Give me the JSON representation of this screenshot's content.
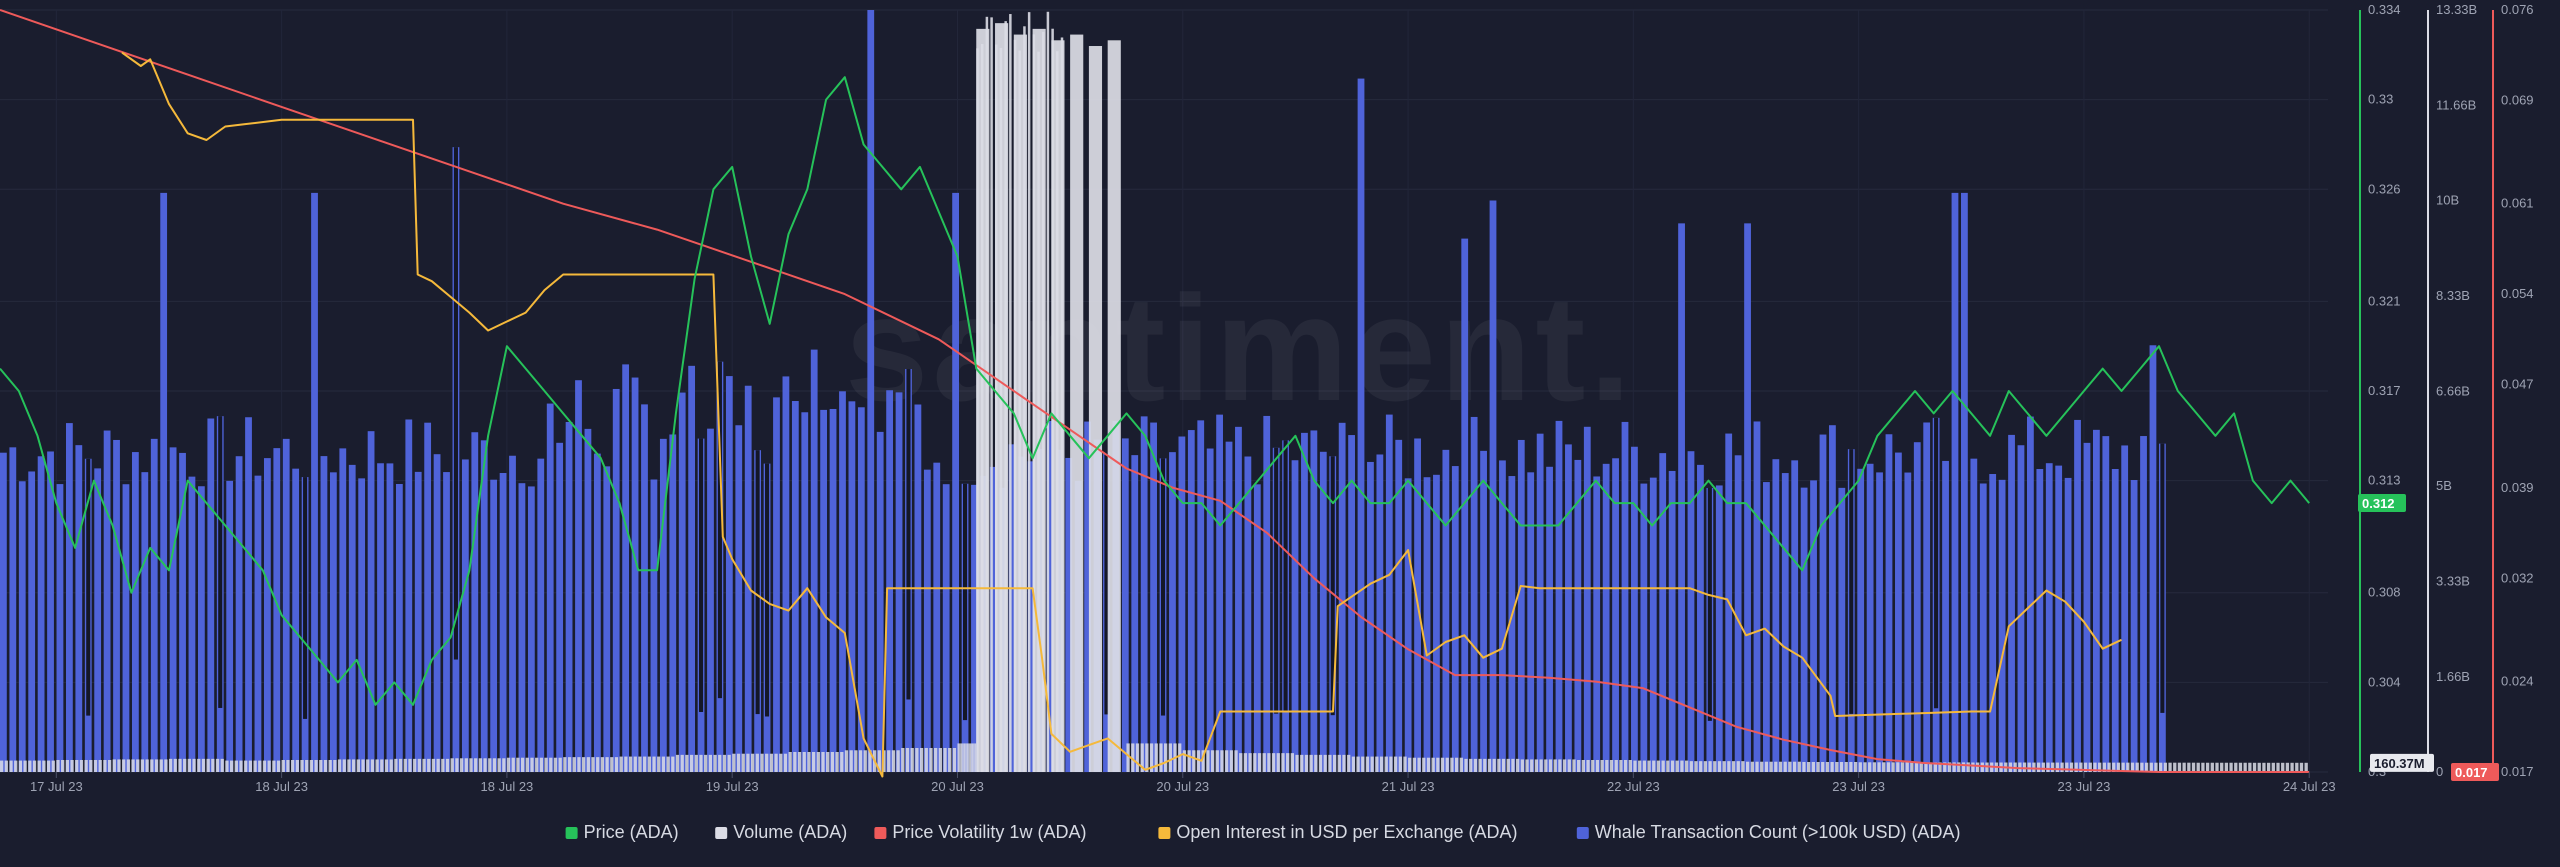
{
  "chart_data": {
    "type": "line",
    "watermark": "santiment.",
    "x_tick_labels": [
      "17 Jul 23",
      "18 Jul 23",
      "18 Jul 23",
      "19 Jul 23",
      "20 Jul 23",
      "20 Jul 23",
      "21 Jul 23",
      "22 Jul 23",
      "23 Jul 23",
      "23 Jul 23",
      "24 Jul 23"
    ],
    "x_tick_positions_hours": [
      6,
      30,
      54,
      78,
      102,
      126,
      150,
      174,
      198,
      222,
      246
    ],
    "x_range_hours": [
      0,
      248
    ],
    "axes": {
      "price": {
        "name": "Price (ADA)",
        "color": "#26c25a",
        "range": [
          0.3,
          0.334
        ],
        "tick_labels": [
          "0.334",
          "0.33",
          "0.326",
          "0.321",
          "0.317",
          "0.313",
          "0.308",
          "0.304",
          "0.3"
        ],
        "tick_values": [
          0.334,
          0.33,
          0.326,
          0.321,
          0.317,
          0.313,
          0.308,
          0.304,
          0.3
        ],
        "current_label": "0.312",
        "current_value": 0.312
      },
      "volume": {
        "name": "Volume (ADA)",
        "color": "#dcdde6",
        "range": [
          0,
          13330000000
        ],
        "tick_labels": [
          "13.33B",
          "11.66B",
          "10B",
          "8.33B",
          "6.66B",
          "5B",
          "3.33B",
          "1.66B",
          "0"
        ],
        "tick_values": [
          13330000000,
          11660000000,
          10000000000,
          8330000000,
          6660000000,
          5000000000,
          3330000000,
          1660000000,
          0
        ],
        "current_label": "160.37M",
        "current_value": 160370000
      },
      "volatility": {
        "name": "Price Volatility 1w (ADA)",
        "color": "#ee5a5a",
        "range": [
          0.017,
          0.076
        ],
        "tick_labels": [
          "0.076",
          "0.069",
          "0.061",
          "0.054",
          "0.047",
          "0.039",
          "0.032",
          "0.024",
          "0.017"
        ],
        "tick_values": [
          0.076,
          0.069,
          0.061,
          0.054,
          0.047,
          0.039,
          0.032,
          0.024,
          0.017
        ],
        "current_label": "0.017",
        "current_value": 0.017
      }
    },
    "series": [
      {
        "name": "Price (ADA)",
        "color": "#26c25a",
        "axis": "price",
        "x": [
          0,
          2,
          4,
          6,
          8,
          10,
          12,
          14,
          16,
          18,
          20,
          22,
          24,
          26,
          28,
          30,
          32,
          34,
          36,
          38,
          40,
          42,
          44,
          46,
          48,
          50,
          52,
          54,
          56,
          58,
          60,
          62,
          64,
          66,
          68,
          70,
          72,
          74,
          76,
          78,
          80,
          82,
          84,
          86,
          88,
          90,
          92,
          94,
          96,
          98,
          100,
          102,
          104,
          106,
          108,
          110,
          112,
          114,
          116,
          118,
          120,
          122,
          124,
          126,
          128,
          130,
          132,
          134,
          136,
          138,
          140,
          142,
          144,
          146,
          148,
          150,
          152,
          154,
          156,
          158,
          160,
          162,
          164,
          166,
          168,
          170,
          172,
          174,
          176,
          178,
          180,
          182,
          184,
          186,
          188,
          190,
          192,
          194,
          196,
          198,
          200,
          202,
          204,
          206,
          208,
          210,
          212,
          214,
          216,
          218,
          220,
          222,
          224,
          226,
          228,
          230,
          232,
          234,
          236,
          238,
          240,
          242,
          244,
          246
        ],
        "values": [
          0.318,
          0.317,
          0.315,
          0.312,
          0.31,
          0.313,
          0.311,
          0.308,
          0.31,
          0.309,
          0.313,
          0.312,
          0.311,
          0.31,
          0.309,
          0.307,
          0.306,
          0.305,
          0.304,
          0.305,
          0.303,
          0.304,
          0.303,
          0.305,
          0.306,
          0.309,
          0.315,
          0.319,
          0.318,
          0.317,
          0.316,
          0.315,
          0.314,
          0.312,
          0.309,
          0.309,
          0.316,
          0.322,
          0.326,
          0.327,
          0.323,
          0.32,
          0.324,
          0.326,
          0.33,
          0.331,
          0.328,
          0.327,
          0.326,
          0.327,
          0.325,
          0.323,
          0.318,
          0.317,
          0.316,
          0.314,
          0.316,
          0.315,
          0.314,
          0.315,
          0.316,
          0.315,
          0.313,
          0.312,
          0.312,
          0.311,
          0.312,
          0.313,
          0.314,
          0.315,
          0.313,
          0.312,
          0.313,
          0.312,
          0.312,
          0.313,
          0.312,
          0.311,
          0.312,
          0.313,
          0.312,
          0.311,
          0.311,
          0.311,
          0.312,
          0.313,
          0.312,
          0.312,
          0.311,
          0.312,
          0.312,
          0.313,
          0.312,
          0.312,
          0.311,
          0.31,
          0.309,
          0.311,
          0.312,
          0.313,
          0.315,
          0.316,
          0.317,
          0.316,
          0.317,
          0.316,
          0.315,
          0.317,
          0.316,
          0.315,
          0.316,
          0.317,
          0.318,
          0.317,
          0.318,
          0.319,
          0.317,
          0.316,
          0.315,
          0.316,
          0.313,
          0.312,
          0.313,
          0.312
        ]
      },
      {
        "name": "Volume (ADA)",
        "color": "#dcdde6",
        "axis": "volume",
        "x": [
          0,
          6,
          12,
          18,
          24,
          30,
          36,
          42,
          48,
          54,
          60,
          66,
          72,
          78,
          84,
          90,
          96,
          102,
          104,
          106,
          108,
          110,
          112,
          114,
          116,
          118,
          120,
          126,
          132,
          138,
          144,
          150,
          156,
          162,
          168,
          174,
          180,
          186,
          192,
          198,
          204,
          210,
          216,
          222,
          228,
          234,
          240,
          246
        ],
        "values": [
          200000000,
          210000000,
          220000000,
          230000000,
          200000000,
          210000000,
          220000000,
          230000000,
          240000000,
          250000000,
          260000000,
          270000000,
          300000000,
          320000000,
          350000000,
          380000000,
          420000000,
          500000000,
          13000000000,
          13100000000,
          12900000000,
          13000000000,
          12800000000,
          12900000000,
          12700000000,
          12800000000,
          500000000,
          380000000,
          330000000,
          300000000,
          270000000,
          250000000,
          230000000,
          220000000,
          210000000,
          200000000,
          190000000,
          180000000,
          175000000,
          170000000,
          168000000,
          166000000,
          165000000,
          164000000,
          163000000,
          162000000,
          161000000,
          160370000
        ]
      },
      {
        "name": "Price Volatility 1w (ADA)",
        "color": "#ee5a5a",
        "axis": "volatility",
        "x": [
          0,
          10,
          20,
          30,
          40,
          50,
          60,
          70,
          80,
          90,
          100,
          105,
          110,
          115,
          120,
          125,
          130,
          135,
          140,
          145,
          150,
          155,
          160,
          165,
          170,
          175,
          180,
          185,
          190,
          195,
          200,
          205,
          210,
          215,
          220,
          225,
          230,
          235,
          240,
          246
        ],
        "values": [
          0.076,
          0.0735,
          0.071,
          0.0685,
          0.066,
          0.0635,
          0.061,
          0.059,
          0.0565,
          0.054,
          0.0505,
          0.048,
          0.0455,
          0.043,
          0.0405,
          0.039,
          0.038,
          0.0355,
          0.032,
          0.029,
          0.0265,
          0.0245,
          0.0245,
          0.0243,
          0.024,
          0.0235,
          0.022,
          0.0205,
          0.0195,
          0.0187,
          0.018,
          0.0177,
          0.0175,
          0.0173,
          0.0172,
          0.0171,
          0.017,
          0.017,
          0.017,
          0.017
        ]
      },
      {
        "name": "Open Interest in USD per Exchange (ADA)",
        "color": "#f5b93b",
        "axis": "price",
        "x": [
          13,
          15,
          16,
          18,
          20,
          22,
          24,
          26,
          30,
          40,
          44,
          44.5,
          46,
          48,
          50,
          52,
          54,
          56,
          58,
          60,
          62,
          64,
          66,
          76,
          77,
          78,
          80,
          82,
          84,
          86,
          88,
          90,
          92,
          94,
          94.5,
          110,
          111,
          112,
          114,
          116,
          118,
          120,
          122,
          124,
          126,
          128,
          130,
          142,
          142.5,
          146,
          148,
          150,
          152,
          154,
          156,
          158,
          160,
          162,
          164,
          166,
          172,
          180,
          182,
          184,
          186,
          188,
          190,
          192,
          195,
          195.5,
          210,
          211,
          212,
          214,
          216,
          218,
          220,
          222,
          224,
          226
        ],
        "values": [
          0.3321,
          0.3315,
          0.3318,
          0.3298,
          0.3285,
          0.3282,
          0.3288,
          0.3289,
          0.3291,
          0.3291,
          0.3291,
          0.3222,
          0.3219,
          0.3212,
          0.3205,
          0.3197,
          0.3201,
          0.3205,
          0.3215,
          0.3222,
          0.3222,
          0.3222,
          0.3222,
          0.3222,
          0.3105,
          0.3095,
          0.3081,
          0.3075,
          0.3072,
          0.3082,
          0.3069,
          0.3062,
          0.3015,
          0.2998,
          0.3082,
          0.3082,
          0.3051,
          0.3017,
          0.3009,
          0.3012,
          0.3015,
          0.3008,
          0.3001,
          0.3004,
          0.3008,
          0.3005,
          0.3027,
          0.3027,
          0.3074,
          0.3084,
          0.3088,
          0.3099,
          0.3052,
          0.3058,
          0.3061,
          0.3051,
          0.3055,
          0.3083,
          0.3082,
          0.3082,
          0.3082,
          0.3082,
          0.3079,
          0.3077,
          0.3061,
          0.3064,
          0.3056,
          0.3051,
          0.3034,
          0.3025,
          0.3027,
          0.3027,
          0.3027,
          0.3065,
          0.3073,
          0.3081,
          0.3076,
          0.3067,
          0.3055,
          0.3059
        ]
      },
      {
        "name": "Whale Transaction Count (>100k USD) (ADA)",
        "color": "#4f63d9",
        "axis": "whale",
        "note_range": [
          0,
          100
        ],
        "bar_count": 230,
        "x_start": 0,
        "x_end": 231,
        "typical_value": 42,
        "spikes": [
          {
            "x": 17.5,
            "value": 76
          },
          {
            "x": 33.5,
            "value": 76
          },
          {
            "x": 48,
            "value": 82
          },
          {
            "x": 92.5,
            "value": 100
          },
          {
            "x": 101.5,
            "value": 76
          },
          {
            "x": 144.5,
            "value": 91
          },
          {
            "x": 155.5,
            "value": 70
          },
          {
            "x": 158.5,
            "value": 75
          },
          {
            "x": 178.5,
            "value": 72
          },
          {
            "x": 186,
            "value": 72
          },
          {
            "x": 207.5,
            "value": 76
          },
          {
            "x": 209,
            "value": 76
          },
          {
            "x": 228.5,
            "value": 56
          }
        ],
        "dark_dips": [
          9,
          23,
          32,
          48,
          74,
          76,
          80,
          81,
          96,
          102,
          118,
          124,
          136,
          137,
          142,
          182,
          197,
          206,
          230
        ]
      }
    ]
  },
  "legend": {
    "items": [
      {
        "label": "Price (ADA)",
        "color": "#26c25a"
      },
      {
        "label": "Volume (ADA)",
        "color": "#dcdde6"
      },
      {
        "label": "Price Volatility 1w (ADA)",
        "color": "#ee5a5a"
      },
      {
        "label": "Open Interest in USD per Exchange (ADA)",
        "color": "#f5b93b"
      },
      {
        "label": "Whale Transaction Count (>100k USD) (ADA)",
        "color": "#4f63d9"
      }
    ]
  }
}
